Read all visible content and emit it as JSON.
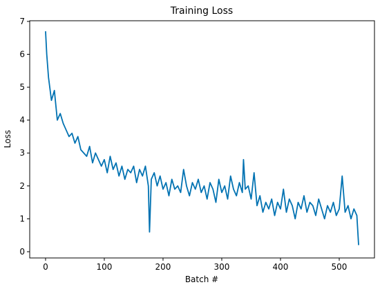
{
  "chart_data": {
    "type": "line",
    "title": "Training Loss",
    "xlabel": "Batch #",
    "ylabel": "Loss",
    "x": [
      0,
      2,
      5,
      10,
      15,
      20,
      25,
      30,
      35,
      40,
      45,
      50,
      55,
      60,
      65,
      70,
      75,
      80,
      85,
      90,
      95,
      100,
      105,
      110,
      115,
      120,
      125,
      130,
      135,
      140,
      145,
      150,
      155,
      160,
      165,
      170,
      175,
      177,
      180,
      185,
      190,
      195,
      200,
      205,
      210,
      215,
      220,
      225,
      230,
      235,
      240,
      245,
      250,
      255,
      260,
      265,
      270,
      275,
      280,
      285,
      290,
      295,
      300,
      305,
      310,
      315,
      320,
      325,
      330,
      335,
      337,
      340,
      345,
      350,
      355,
      360,
      365,
      370,
      375,
      380,
      385,
      390,
      395,
      400,
      405,
      410,
      415,
      420,
      425,
      430,
      435,
      440,
      445,
      450,
      455,
      460,
      465,
      470,
      475,
      480,
      485,
      490,
      495,
      500,
      505,
      510,
      515,
      520,
      525,
      530,
      533
    ],
    "series": [
      {
        "name": "loss",
        "color": "#0072b2",
        "values": [
          6.7,
          6.0,
          5.3,
          4.6,
          4.9,
          4.0,
          4.2,
          3.9,
          3.7,
          3.5,
          3.6,
          3.3,
          3.5,
          3.1,
          3.0,
          2.9,
          3.2,
          2.7,
          3.0,
          2.8,
          2.6,
          2.8,
          2.4,
          2.9,
          2.5,
          2.7,
          2.3,
          2.6,
          2.2,
          2.5,
          2.4,
          2.6,
          2.1,
          2.5,
          2.3,
          2.6,
          2.0,
          0.6,
          2.2,
          2.4,
          2.0,
          2.3,
          1.9,
          2.1,
          1.7,
          2.2,
          1.9,
          2.0,
          1.8,
          2.5,
          2.0,
          1.7,
          2.1,
          1.9,
          2.2,
          1.8,
          2.0,
          1.6,
          2.1,
          1.9,
          1.5,
          2.2,
          1.8,
          2.0,
          1.6,
          2.3,
          1.9,
          1.7,
          2.1,
          1.8,
          2.8,
          1.9,
          2.0,
          1.6,
          2.4,
          1.4,
          1.7,
          1.2,
          1.5,
          1.3,
          1.6,
          1.1,
          1.5,
          1.3,
          1.9,
          1.2,
          1.6,
          1.4,
          1.0,
          1.5,
          1.3,
          1.7,
          1.2,
          1.5,
          1.4,
          1.1,
          1.6,
          1.3,
          1.0,
          1.4,
          1.2,
          1.5,
          1.1,
          1.3,
          2.3,
          1.2,
          1.4,
          1.0,
          1.3,
          1.1,
          0.2
        ]
      }
    ],
    "xlim": [
      -27,
      560
    ],
    "xticks": [
      0,
      100,
      200,
      300,
      400,
      500
    ],
    "ylim": [
      -0.19,
      7.02
    ],
    "yticks": [
      0,
      1,
      2,
      3,
      4,
      5,
      6,
      7
    ]
  }
}
